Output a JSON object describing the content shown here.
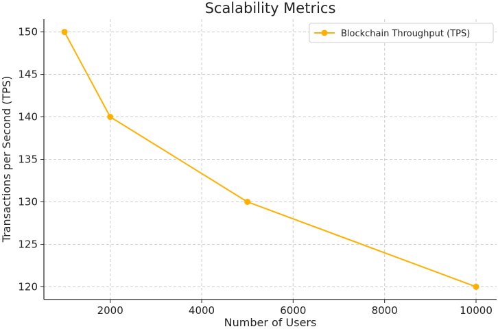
{
  "chart_data": {
    "type": "line",
    "title": "Scalability Metrics",
    "xlabel": "Number of Users",
    "ylabel": "Transactions per Second (TPS)",
    "xlim": [
      550,
      10450
    ],
    "ylim": [
      118.5,
      151.5
    ],
    "xticks": [
      2000,
      4000,
      6000,
      8000,
      10000
    ],
    "yticks": [
      120,
      125,
      130,
      135,
      140,
      145,
      150
    ],
    "grid": true,
    "legend_position": "top-right",
    "series": [
      {
        "name": "Blockchain Throughput (TPS)",
        "color": "#FFB000",
        "marker": "circle",
        "x": [
          1000,
          2000,
          5000,
          10000
        ],
        "y": [
          150,
          140,
          130,
          120
        ]
      }
    ]
  }
}
